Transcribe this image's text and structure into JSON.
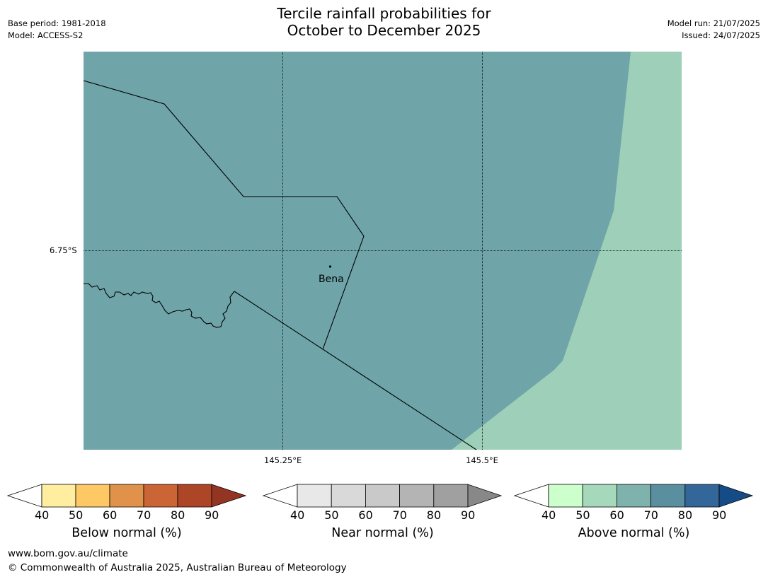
{
  "header": {
    "title_line1": "Tercile rainfall probabilities for",
    "title_line2": "October to December 2025",
    "base_period": "Base period: 1981-2018",
    "model": "Model: ACCESS-S2",
    "model_run": "Model run: 21/07/2025",
    "issued": "Issued: 24/07/2025"
  },
  "map": {
    "x_range": [
      145.0,
      145.75
    ],
    "lon_ticks": [
      {
        "value": 145.25,
        "label": "145.25°E"
      },
      {
        "value": 145.5,
        "label": "145.5°E"
      }
    ],
    "lat_ticks": [
      {
        "value": -6.75,
        "label": "6.75°S"
      }
    ],
    "places": [
      {
        "name": "Bena"
      }
    ],
    "colors": {
      "above_normal_70_80": "#6fa4a8",
      "above_normal_50_60": "#9ecfb8",
      "boundary": "#000000"
    }
  },
  "colorbars": [
    {
      "label": "Below normal (%)",
      "ticks": [
        "40",
        "50",
        "60",
        "70",
        "80",
        "90"
      ],
      "colors": [
        "#ffffff",
        "#ffeda0",
        "#fec965",
        "#e0924a",
        "#cc6535",
        "#ad4527",
        "#943422"
      ]
    },
    {
      "label": "Near normal (%)",
      "ticks": [
        "40",
        "50",
        "60",
        "70",
        "80",
        "90"
      ],
      "colors": [
        "#ffffff",
        "#e8e8e8",
        "#d9d9d9",
        "#c9c9c9",
        "#b4b4b4",
        "#a0a0a0",
        "#888888"
      ]
    },
    {
      "label": "Above normal (%)",
      "ticks": [
        "40",
        "50",
        "60",
        "70",
        "80",
        "90"
      ],
      "colors": [
        "#ffffff",
        "#ccffcc",
        "#a6d9bc",
        "#7fb2ad",
        "#5a8fa0",
        "#336699",
        "#164c85"
      ]
    }
  ],
  "footer": {
    "website": "www.bom.gov.au/climate",
    "copyright": "© Commonwealth of Australia 2025, Australian Bureau of Meteorology"
  }
}
